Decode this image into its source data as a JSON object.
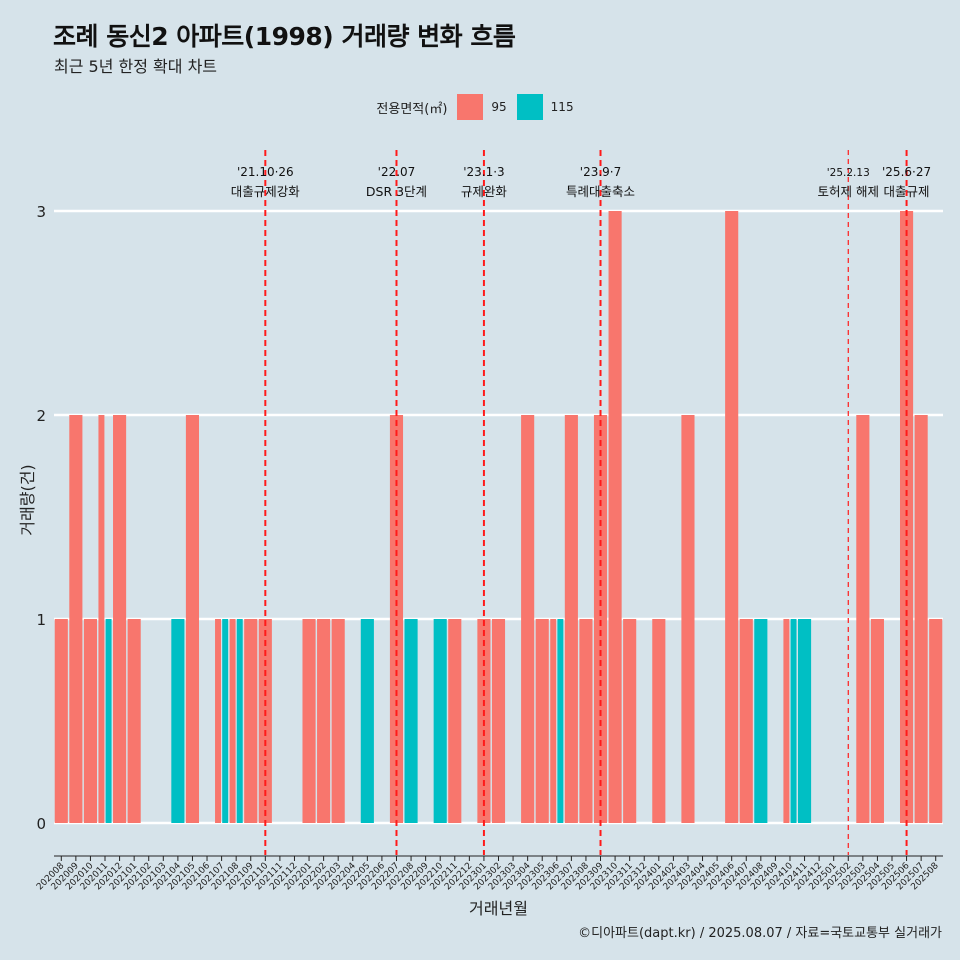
{
  "header": {
    "title": "조례 동신2 아파트(1998) 거래량 변화 흐름",
    "subtitle": "최근 5년 한정 확대 차트"
  },
  "legend": {
    "title": "전용면적(㎡)",
    "items": [
      {
        "label": "95",
        "color": "#F8766D"
      },
      {
        "label": "115",
        "color": "#00BFC4"
      }
    ]
  },
  "footer": "©디아파트(dapt.kr) / 2025.08.07 / 자료=국토교통부 실거래가",
  "chart_data": {
    "type": "bar",
    "stacked": false,
    "xlabel": "거래년월",
    "ylabel": "거래량(건)",
    "ylim": [
      0,
      3
    ],
    "yticks": [
      0,
      1,
      2,
      3
    ],
    "grid": true,
    "legend_position": "top",
    "categories": [
      "202008",
      "202009",
      "202010",
      "202011",
      "202012",
      "202101",
      "202102",
      "202103",
      "202104",
      "202105",
      "202106",
      "202107",
      "202108",
      "202109",
      "202110",
      "202111",
      "202112",
      "202201",
      "202202",
      "202203",
      "202204",
      "202205",
      "202206",
      "202207",
      "202208",
      "202209",
      "202210",
      "202211",
      "202212",
      "202301",
      "202302",
      "202303",
      "202304",
      "202305",
      "202306",
      "202307",
      "202308",
      "202309",
      "202310",
      "202311",
      "202312",
      "202401",
      "202402",
      "202403",
      "202404",
      "202405",
      "202406",
      "202407",
      "202408",
      "202409",
      "202410",
      "202411",
      "202412",
      "202501",
      "202502",
      "202503",
      "202504",
      "202505",
      "202506",
      "202507",
      "202508"
    ],
    "series": [
      {
        "name": "95",
        "color": "#F8766D",
        "values": [
          1,
          2,
          1,
          2,
          2,
          1,
          0,
          0,
          0,
          2,
          0,
          1,
          1,
          1,
          1,
          0,
          0,
          1,
          1,
          1,
          0,
          0,
          0,
          2,
          0,
          0,
          0,
          1,
          0,
          1,
          1,
          0,
          2,
          1,
          1,
          2,
          1,
          2,
          3,
          1,
          0,
          1,
          0,
          2,
          0,
          0,
          3,
          1,
          0,
          0,
          1,
          0,
          0,
          0,
          0,
          2,
          1,
          0,
          3,
          2,
          1
        ]
      },
      {
        "name": "115",
        "color": "#00BFC4",
        "values": [
          0,
          0,
          0,
          1,
          0,
          0,
          0,
          0,
          1,
          0,
          0,
          1,
          1,
          0,
          0,
          0,
          0,
          0,
          0,
          0,
          0,
          1,
          0,
          0,
          1,
          0,
          1,
          0,
          0,
          0,
          0,
          0,
          0,
          0,
          1,
          0,
          0,
          0,
          0,
          0,
          0,
          0,
          0,
          0,
          0,
          0,
          0,
          0,
          1,
          0,
          1,
          1,
          0,
          0,
          0,
          0,
          0,
          0,
          0,
          0,
          0
        ]
      }
    ],
    "annotations": [
      {
        "at": "202110",
        "date": "'21.10·26",
        "label": "대출규제강화",
        "style": "bold"
      },
      {
        "at": "202207",
        "date": "'22.07",
        "label": "DSR 3단계",
        "style": "bold"
      },
      {
        "at": "202301",
        "date": "'23.1·3",
        "label": "규제완화",
        "style": "bold"
      },
      {
        "at": "202309",
        "date": "'23.9·7",
        "label": "특례대출축소",
        "style": "bold"
      },
      {
        "at": "202502",
        "date": "'25.2.13",
        "label": "토허제 해제",
        "style": "thin"
      },
      {
        "at": "202506",
        "date": "'25.6·27",
        "label": "대출규제",
        "style": "bold"
      }
    ]
  }
}
